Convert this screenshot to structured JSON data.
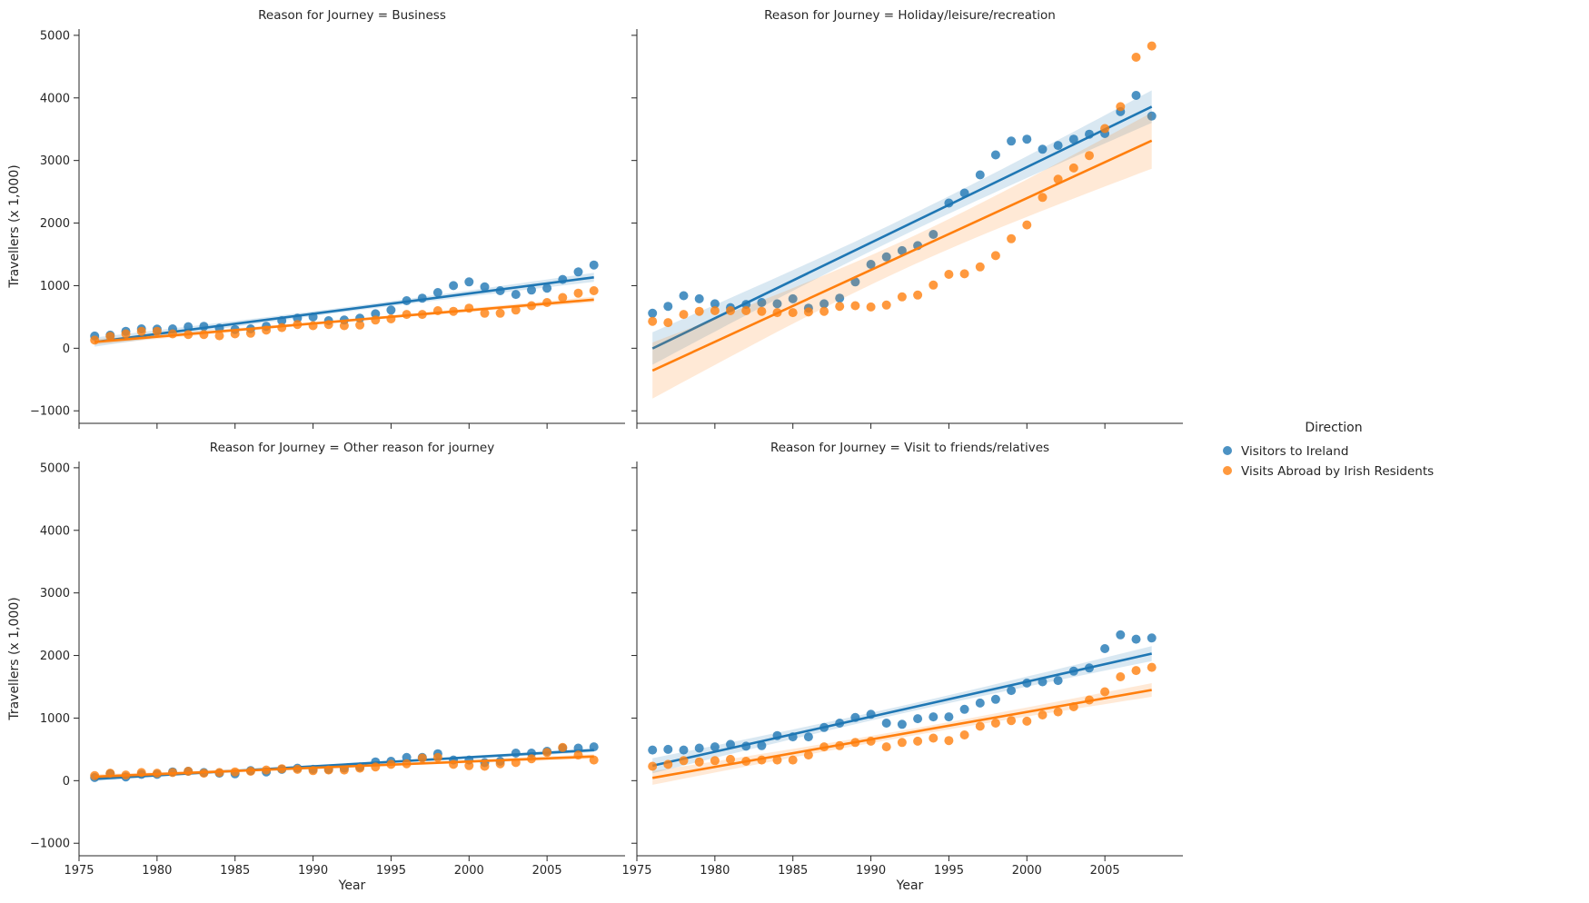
{
  "chart_data": {
    "type": "scatter",
    "layout": "facet-grid-2x2",
    "facet_variable": "Reason for Journey",
    "facet_title_separator": " = ",
    "x_label": "Year",
    "y_label": "Travellers (x 1,000)",
    "xlim": [
      1975,
      2010
    ],
    "ylim": [
      -1200,
      5100
    ],
    "x_ticks": [
      1975,
      1980,
      1985,
      1990,
      1995,
      2000,
      2005
    ],
    "y_ticks": [
      -1000,
      0,
      1000,
      2000,
      3000,
      4000,
      5000
    ],
    "regression_lines": true,
    "confidence_bands": true,
    "legend": {
      "title": "Direction",
      "placement": "right",
      "entries": [
        "Visitors to Ireland",
        "Visits Abroad by Irish Residents"
      ]
    },
    "colors": {
      "Visitors to Ireland": "#1f77b4",
      "Visits Abroad by Irish Residents": "#ff7f0e"
    },
    "x": [
      1976,
      1977,
      1978,
      1979,
      1980,
      1981,
      1982,
      1983,
      1984,
      1985,
      1986,
      1987,
      1988,
      1989,
      1990,
      1991,
      1992,
      1993,
      1994,
      1995,
      1996,
      1997,
      1998,
      1999,
      2000,
      2001,
      2002,
      2003,
      2004,
      2005,
      2006,
      2007,
      2008
    ],
    "facets": [
      {
        "value": "Business",
        "series": [
          {
            "name": "Visitors to Ireland",
            "values": [
              195,
              210,
              270,
              310,
              305,
              310,
              345,
              350,
              320,
              300,
              310,
              350,
              440,
              480,
              500,
              440,
              450,
              480,
              550,
              610,
              760,
              800,
              890,
              1000,
              1060,
              980,
              920,
              860,
              930,
              960,
              1100,
              1220,
              1330
            ]
          },
          {
            "name": "Visits Abroad by Irish Residents",
            "values": [
              130,
              190,
              230,
              270,
              270,
              230,
              220,
              220,
              200,
              230,
              240,
              290,
              330,
              380,
              360,
              380,
              360,
              370,
              450,
              470,
              540,
              540,
              600,
              590,
              640,
              560,
              560,
              610,
              680,
              730,
              810,
              880,
              920
            ]
          }
        ]
      },
      {
        "value": "Holiday/leisure/recreation",
        "series": [
          {
            "name": "Visitors to Ireland",
            "values": [
              560,
              670,
              840,
              790,
              710,
              650,
              700,
              730,
              710,
              790,
              640,
              710,
              800,
              1060,
              1340,
              1460,
              1560,
              1640,
              1820,
              2320,
              2480,
              2770,
              3090,
              3310,
              3340,
              3180,
              3240,
              3340,
              3420,
              3430,
              3780,
              4040,
              3710
            ]
          },
          {
            "name": "Visits Abroad by Irish Residents",
            "values": [
              430,
              410,
              540,
              590,
              600,
              600,
              600,
              590,
              570,
              570,
              580,
              590,
              670,
              680,
              660,
              690,
              820,
              850,
              1010,
              1180,
              1190,
              1300,
              1480,
              1750,
              1970,
              2410,
              2700,
              2880,
              3080,
              3510,
              3860,
              4650,
              4830
            ]
          }
        ]
      },
      {
        "value": "Other reason for journey",
        "series": [
          {
            "name": "Visitors to Ireland",
            "values": [
              50,
              110,
              60,
              100,
              100,
              140,
              150,
              130,
              120,
              110,
              160,
              140,
              180,
              200,
              180,
              180,
              200,
              220,
              300,
              310,
              370,
              370,
              430,
              330,
              330,
              290,
              310,
              440,
              440,
              470,
              520,
              520,
              540
            ]
          },
          {
            "name": "Visits Abroad by Irish Residents",
            "values": [
              80,
              120,
              90,
              130,
              120,
              130,
              150,
              120,
              130,
              140,
              150,
              170,
              190,
              180,
              160,
              170,
              170,
              200,
              220,
              260,
              270,
              360,
              370,
              260,
              240,
              230,
              270,
              290,
              350,
              450,
              530,
              410,
              330
            ]
          }
        ]
      },
      {
        "value": "Visit to friends/relatives",
        "series": [
          {
            "name": "Visitors to Ireland",
            "values": [
              490,
              500,
              490,
              520,
              540,
              580,
              550,
              560,
              720,
              700,
              700,
              850,
              920,
              1010,
              1060,
              920,
              900,
              990,
              1020,
              1020,
              1140,
              1240,
              1300,
              1440,
              1560,
              1580,
              1600,
              1750,
              1800,
              2110,
              2330,
              2260,
              2280
            ]
          },
          {
            "name": "Visits Abroad by Irish Residents",
            "values": [
              230,
              260,
              320,
              300,
              320,
              340,
              310,
              330,
              330,
              330,
              410,
              540,
              560,
              610,
              630,
              540,
              610,
              630,
              680,
              640,
              730,
              870,
              920,
              960,
              950,
              1050,
              1100,
              1180,
              1290,
              1420,
              1660,
              1760,
              1810
            ]
          }
        ]
      }
    ]
  }
}
